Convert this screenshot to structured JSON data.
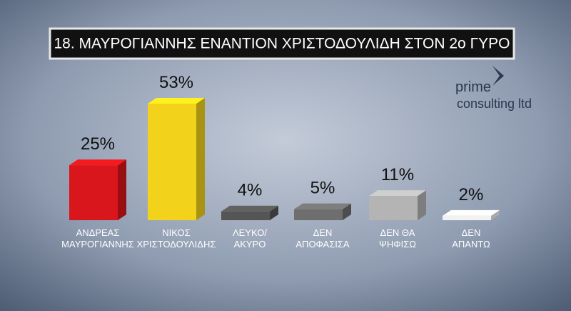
{
  "chart_data": {
    "type": "bar",
    "title": "18. ΜΑΥΡΟΓΙΑΝΝΗΣ ΕΝΑΝΤΙΟΝ ΧΡΙΣΤΟΔΟΥΛΙΔΗ ΣΤΟΝ 2ο ΓΥΡΟ",
    "categories": [
      "ΑΝΔΡΕΑΣ\nΜΑΥΡΟΓΙΑΝΝΗΣ",
      "ΝΙΚΟΣ\nΧΡΙΣΤΟΔΟΥΛΙΔΗΣ",
      "ΛΕΥΚΟ/\nΑΚΥΡΟ",
      "ΔΕΝ\nΑΠΟΦΑΣΙΣΑ",
      "ΔΕΝ ΘΑ\nΨΗΦΙΣΩ",
      "ΔΕΝ\nΑΠΑΝΤΩ"
    ],
    "values": [
      25,
      53,
      4,
      5,
      11,
      2
    ],
    "value_labels": [
      "25%",
      "53%",
      "4%",
      "5%",
      "11%",
      "2%"
    ],
    "colors": [
      "#d8161b",
      "#f2d21a",
      "#555555",
      "#6e6e6e",
      "#b4b4b4",
      "#f2f2f2"
    ]
  },
  "logo": {
    "line1": "prime",
    "line2": "consulting ltd"
  }
}
